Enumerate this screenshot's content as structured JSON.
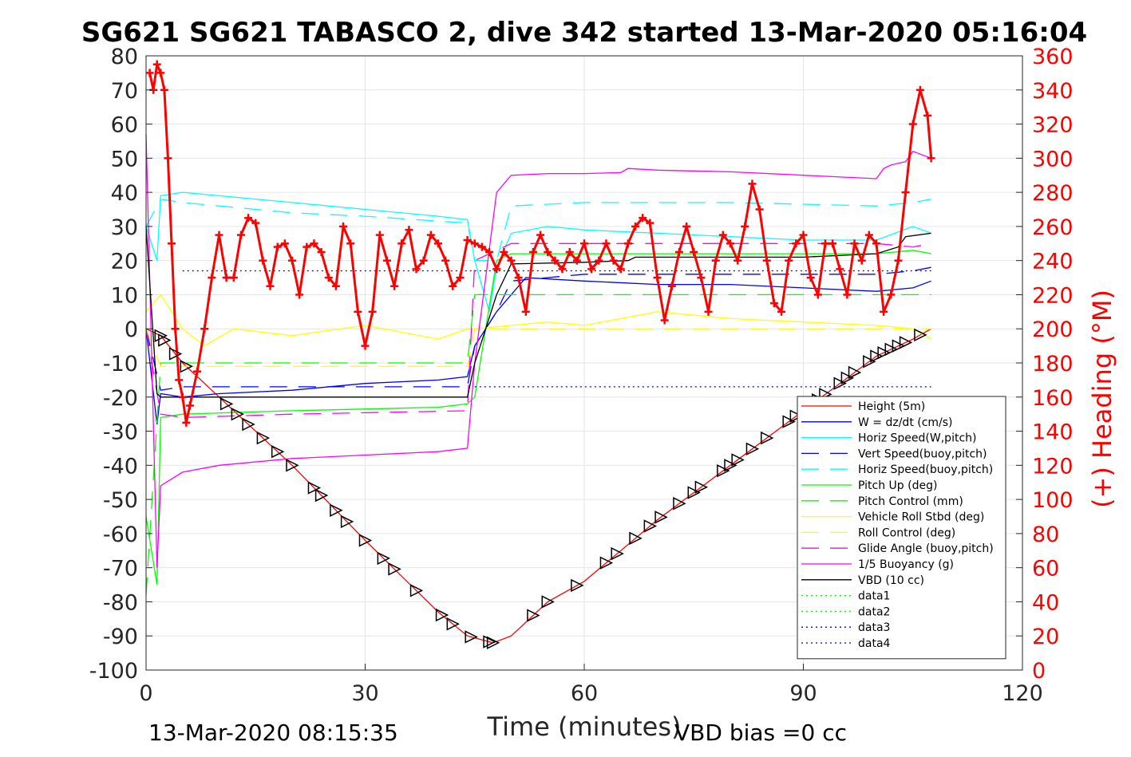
{
  "chart_data": {
    "type": "line",
    "title": "SG621 SG621 TABASCO 2, dive 342 started 13-Mar-2020 05:16:04",
    "xlabel": "Time (minutes)",
    "ylabel_left": "",
    "ylabel_right": "(+) Heading (°M)",
    "xlim": [
      0,
      120
    ],
    "ylim": [
      -100,
      80
    ],
    "y2lim": [
      0,
      360
    ],
    "x_ticks": [
      "0",
      "30",
      "60",
      "90",
      "120"
    ],
    "y_ticks": [
      "80",
      "70",
      "60",
      "50",
      "40",
      "30",
      "20",
      "10",
      "0",
      "-10",
      "-20",
      "-30",
      "-40",
      "-50",
      "-60",
      "-70",
      "-80",
      "-90",
      "-100"
    ],
    "y2_ticks": [
      "360",
      "340",
      "320",
      "300",
      "280",
      "260",
      "240",
      "220",
      "200",
      "180",
      "160",
      "140",
      "120",
      "100",
      "80",
      "60",
      "40",
      "20",
      "0"
    ],
    "grid": true,
    "legend_position": "lower-right",
    "footer_left": "13-Mar-2020 08:15:35",
    "footer_right": "VBD bias =0 cc",
    "series": [
      {
        "name": "Height (5m)",
        "color": "#ff0000",
        "style": "solid",
        "x": [
          0,
          2,
          5,
          10,
          20,
          30,
          40,
          44,
          47.5,
          50,
          55,
          60,
          70,
          80,
          90,
          100,
          105,
          107.5
        ],
        "y": [
          0,
          -2,
          -10,
          -20,
          -40,
          -62,
          -83,
          -90,
          -92,
          -90,
          -80,
          -74,
          -56,
          -40,
          -24,
          -8,
          -3,
          0
        ]
      },
      {
        "name": "W = dz/dt (cm/s)",
        "color": "#0000ff",
        "style": "solid",
        "x": [
          0,
          1.5,
          2,
          5,
          10,
          20,
          30,
          40,
          44,
          45,
          48,
          50,
          52,
          60,
          70,
          80,
          90,
          100,
          105,
          107.5
        ],
        "y": [
          0,
          -28,
          -19,
          -20,
          -19,
          -18,
          -16,
          -15,
          -14,
          -5,
          5,
          10,
          15,
          14,
          13,
          13,
          12,
          11,
          12,
          14
        ]
      },
      {
        "name": "Horiz Speed(W,pitch)",
        "color": "#00ffff",
        "style": "solid",
        "x": [
          0,
          1.5,
          2,
          5,
          10,
          20,
          30,
          40,
          44,
          45,
          47,
          48,
          50,
          55,
          60,
          70,
          80,
          90,
          100,
          105,
          107.5
        ],
        "y": [
          30,
          20,
          39,
          40,
          39,
          37,
          35,
          33,
          32,
          20,
          5,
          18,
          28,
          30,
          29,
          28,
          27,
          26,
          26,
          30,
          28
        ]
      },
      {
        "name": "Vert Speed(buoy,pitch)",
        "color": "#0000ff",
        "style": "dashed",
        "x": [
          0,
          2,
          5,
          20,
          44,
          45,
          48,
          50,
          60,
          80,
          100,
          105,
          107.5
        ],
        "y": [
          0,
          -18,
          -17,
          -17,
          -17,
          -5,
          5,
          14,
          16,
          16,
          16,
          17,
          18
        ]
      },
      {
        "name": "Horiz Speed(buoy,pitch)",
        "color": "#00ffff",
        "style": "dashed",
        "x": [
          0,
          2,
          5,
          20,
          30,
          44,
          45,
          48,
          50,
          60,
          80,
          100,
          105,
          107.5
        ],
        "y": [
          30,
          38,
          37,
          34,
          33,
          31,
          20,
          20,
          36,
          37,
          37,
          36,
          37,
          38
        ]
      },
      {
        "name": "Pitch Up (deg)",
        "color": "#00ff00",
        "style": "solid",
        "x": [
          0,
          1.5,
          2,
          5,
          20,
          40,
          44,
          45,
          48,
          50,
          60,
          80,
          100,
          105,
          107.5
        ],
        "y": [
          -55,
          -75,
          -26,
          -25,
          -24,
          -23,
          -22,
          -20,
          20,
          22,
          22,
          22,
          22,
          23,
          22
        ]
      },
      {
        "name": "Pitch Control (mm)",
        "color": "#00ff00",
        "style": "dashed",
        "x": [
          0,
          2,
          44,
          45,
          107.5
        ],
        "y": [
          -78,
          -10,
          -10,
          10,
          10
        ]
      },
      {
        "name": "Vehicle Roll Stbd (deg)",
        "color": "#ffff00",
        "style": "solid",
        "x": [
          0,
          2,
          5,
          8,
          12,
          20,
          30,
          40,
          44,
          45,
          50,
          55,
          60,
          70,
          80,
          90,
          100,
          105,
          107.5
        ],
        "y": [
          5,
          10,
          0,
          -5,
          0,
          -2,
          1,
          -3,
          0,
          0,
          1,
          2,
          1,
          5,
          3,
          2,
          1,
          0,
          -3
        ]
      },
      {
        "name": "Roll Control (deg)",
        "color": "#ffff00",
        "style": "dashed",
        "x": [
          0,
          2,
          44,
          45,
          107.5
        ],
        "y": [
          0,
          -11,
          -11,
          0,
          0
        ]
      },
      {
        "name": "Glide Angle (buoy,pitch)",
        "color": "#ff00ff",
        "style": "dashed",
        "x": [
          0,
          2,
          5,
          20,
          44,
          45,
          48,
          50,
          60,
          80,
          100,
          105,
          107.5
        ],
        "y": [
          0,
          -25,
          -26,
          -25,
          -24,
          20,
          23,
          25,
          25,
          25,
          25,
          24,
          25
        ]
      },
      {
        "name": "1/5 Buoyancy (g)",
        "color": "#ff00ff",
        "style": "solid",
        "x": [
          0,
          1.5,
          2,
          5,
          10,
          20,
          30,
          40,
          44,
          45,
          48,
          50,
          55,
          60,
          65,
          66,
          70,
          80,
          90,
          100,
          101,
          102,
          104,
          105,
          107.5
        ],
        "y": [
          57,
          -70,
          -46,
          -42,
          -40,
          -38,
          -37,
          -36,
          -35,
          -10,
          40,
          45,
          45.5,
          45.5,
          45.8,
          47,
          46.5,
          46,
          45,
          44,
          47,
          48,
          49,
          52,
          50
        ]
      },
      {
        "name": "VBD (10 cc)",
        "color": "#000000",
        "style": "solid",
        "x": [
          0,
          1.5,
          2,
          44,
          45,
          48,
          50,
          60,
          66,
          67,
          70,
          80,
          90,
          100,
          103,
          104,
          107.5
        ],
        "y": [
          30,
          -19,
          -20,
          -20,
          -10,
          10,
          19,
          19.5,
          20,
          21,
          21,
          21,
          21,
          22,
          24,
          27,
          28
        ]
      },
      {
        "name": "data1",
        "color": "#00ff00",
        "style": "dotted",
        "x": [],
        "y": []
      },
      {
        "name": "data2",
        "color": "#00ff00",
        "style": "dotted",
        "x": [],
        "y": []
      },
      {
        "name": "data3",
        "color": "#0000cc",
        "style": "dotted",
        "x": [
          5,
          107.5
        ],
        "y": [
          17,
          17
        ]
      },
      {
        "name": "data4",
        "color": "#0000cc",
        "style": "dotted",
        "x": [
          45,
          107.5
        ],
        "y": [
          -17,
          -17
        ]
      }
    ],
    "heading": {
      "color": "#ff0000",
      "marker": "+",
      "axis": "right",
      "x": [
        0.5,
        1,
        1.5,
        2,
        2.5,
        3,
        3.5,
        4,
        4.5,
        5,
        5.5,
        6,
        7,
        8,
        9,
        10,
        11,
        12,
        13,
        14,
        15,
        16,
        17,
        18,
        19,
        20,
        21,
        22,
        23,
        24,
        25,
        26,
        27,
        28,
        29,
        30,
        31,
        32,
        33,
        34,
        35,
        36,
        37,
        38,
        39,
        40,
        41,
        42,
        43,
        44,
        45,
        46,
        47,
        48,
        49,
        50,
        51,
        52,
        53,
        54,
        55,
        56,
        57,
        58,
        59,
        60,
        61,
        62,
        63,
        64,
        65,
        66,
        67,
        68,
        69,
        70,
        71,
        72,
        73,
        74,
        75,
        76,
        77,
        78,
        79,
        80,
        81,
        82,
        83,
        84,
        85,
        86,
        87,
        88,
        89,
        90,
        91,
        92,
        93,
        94,
        95,
        96,
        97,
        98,
        99,
        100,
        101,
        102,
        103,
        104,
        105,
        106,
        107,
        107.5
      ],
      "y": [
        350,
        340,
        355,
        350,
        340,
        300,
        250,
        200,
        170,
        160,
        145,
        155,
        175,
        200,
        230,
        255,
        230,
        230,
        255,
        265,
        262,
        240,
        225,
        248,
        250,
        240,
        220,
        248,
        250,
        245,
        230,
        225,
        260,
        250,
        210,
        190,
        210,
        255,
        240,
        225,
        250,
        258,
        235,
        240,
        255,
        250,
        240,
        225,
        230,
        252,
        250,
        248,
        245,
        235,
        245,
        240,
        230,
        210,
        245,
        255,
        245,
        240,
        235,
        245,
        240,
        250,
        235,
        240,
        250,
        240,
        235,
        250,
        260,
        265,
        262,
        230,
        205,
        225,
        245,
        260,
        245,
        230,
        210,
        240,
        255,
        250,
        240,
        260,
        285,
        270,
        240,
        215,
        210,
        240,
        250,
        255,
        230,
        220,
        250,
        250,
        235,
        220,
        250,
        240,
        255,
        250,
        210,
        220,
        240,
        280,
        320,
        340,
        325,
        300
      ]
    },
    "markers": {
      "symbol": "triangle",
      "color": "#000000",
      "on_series": "Height (5m)",
      "x": [
        2,
        2.5,
        4,
        5.5,
        11,
        12.5,
        14,
        16,
        18,
        20,
        23,
        24,
        26,
        27.5,
        30,
        32.5,
        34,
        37,
        40.5,
        42,
        44.5,
        47,
        47.5,
        53,
        55,
        59,
        63,
        64.5,
        67,
        69,
        70.5,
        73,
        75,
        76,
        79,
        80,
        81,
        83,
        85,
        88,
        89,
        92,
        93,
        95,
        96,
        97,
        99,
        100,
        101,
        102,
        103,
        104,
        106
      ]
    }
  }
}
